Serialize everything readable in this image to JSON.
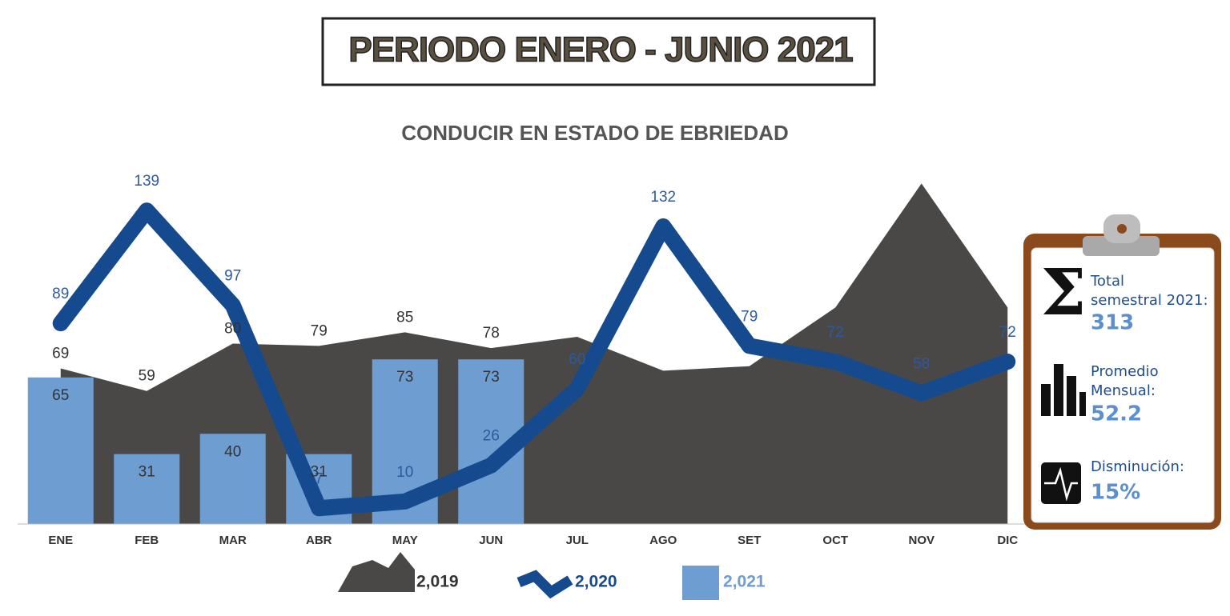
{
  "header": {
    "title": "PERIODO ENERO - JUNIO 2021"
  },
  "chart_data": {
    "type": "combo",
    "title": "CONDUCIR EN ESTADO DE EBRIEDAD",
    "categories": [
      "ENE",
      "FEB",
      "MAR",
      "ABR",
      "MAY",
      "JUN",
      "JUL",
      "AGO",
      "SET",
      "OCT",
      "NOV",
      "DIC"
    ],
    "ylim": [
      0,
      160
    ],
    "series": [
      {
        "name": "2,019",
        "type": "area",
        "color": "#4a4846",
        "values": [
          69,
          59,
          80,
          79,
          85,
          78,
          83,
          68,
          70,
          96,
          151,
          96
        ],
        "value_labels": [
          "69",
          "59",
          "80",
          "79",
          "85",
          "78",
          null,
          null,
          null,
          null,
          null,
          null
        ]
      },
      {
        "name": "2,020",
        "type": "line",
        "color": "#154a8e",
        "values": [
          89,
          139,
          97,
          7,
          10,
          26,
          60,
          132,
          79,
          72,
          58,
          72
        ]
      },
      {
        "name": "2,021",
        "type": "bar",
        "color": "#6d9dd1",
        "values": [
          65,
          31,
          40,
          31,
          73,
          73,
          null,
          null,
          null,
          null,
          null,
          null
        ]
      }
    ]
  },
  "panel": {
    "items": [
      {
        "label": "Total semestral 2021:",
        "value": "313"
      },
      {
        "label": "Promedio Mensual:",
        "value": "52.2"
      },
      {
        "label": "Disminución:",
        "value": "15%"
      }
    ]
  }
}
